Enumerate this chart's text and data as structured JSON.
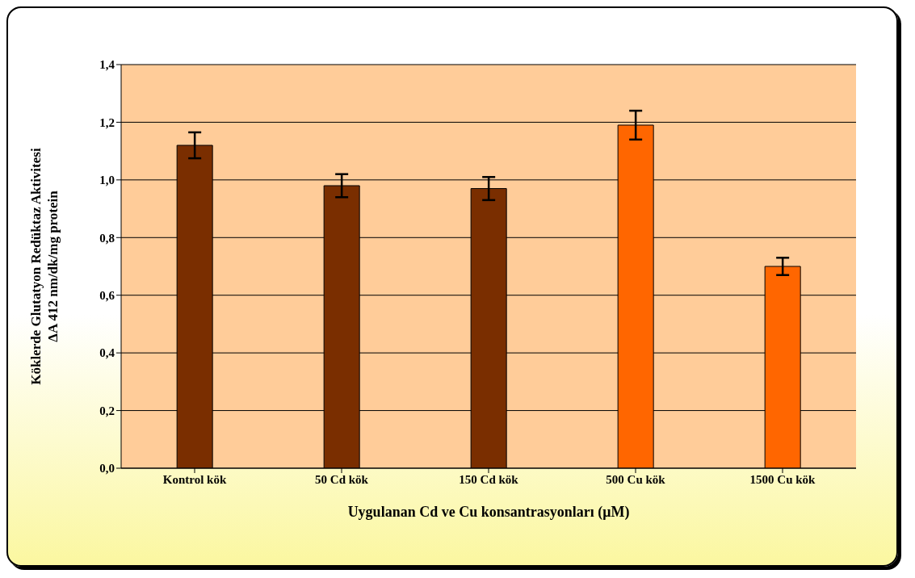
{
  "chart_data": {
    "type": "bar",
    "xlabel": "Uygulanan Cd ve Cu konsantrasyonları (μM)",
    "ylabel": "Köklerde Glutatyon Redüktaz Aktivitesi\nΔA 412 nm/dk/mg protein",
    "categories": [
      "Kontrol kök",
      "50 Cd kök",
      "150 Cd kök",
      "500 Cu kök",
      "1500 Cu kök"
    ],
    "values": [
      1.12,
      0.98,
      0.97,
      1.19,
      0.7
    ],
    "colors": [
      "#7a2e00",
      "#7a2e00",
      "#7a2e00",
      "#ff6600",
      "#ff6600"
    ],
    "errors": [
      0.045,
      0.04,
      0.04,
      0.05,
      0.03
    ],
    "ylim": [
      0,
      1.4
    ],
    "yticks": [
      {
        "value": 0,
        "label": "0,0"
      },
      {
        "value": 0.2,
        "label": "0,2"
      },
      {
        "value": 0.4,
        "label": "0,4"
      },
      {
        "value": 0.6,
        "label": "0,6"
      },
      {
        "value": 0.8,
        "label": "0,8"
      },
      {
        "value": 1.0,
        "label": "1,0"
      },
      {
        "value": 1.2,
        "label": "1,2"
      },
      {
        "value": 1.4,
        "label": "1,4"
      }
    ],
    "grid": "y",
    "legend": false
  }
}
